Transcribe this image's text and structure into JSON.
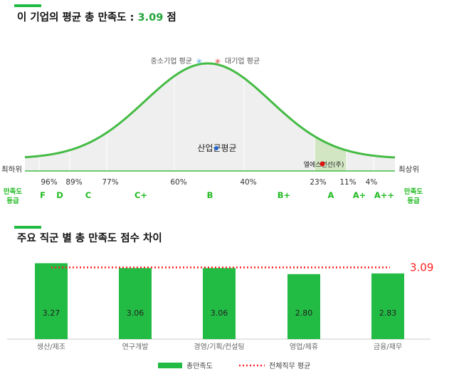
{
  "section1": {
    "title_prefix": "이 기업의 평균 총 만족도 :",
    "score": "3.09",
    "title_suffix": "점"
  },
  "bell": {
    "legend": {
      "sme": "중소기업 평균",
      "large": "대기업 평균"
    },
    "industry_label": "산업군평균",
    "company_label": "엘에스전선(주)",
    "left_end": "최하위",
    "right_end": "최상위",
    "percentiles": [
      "96%",
      "89%",
      "77%",
      "60%",
      "40%",
      "23%",
      "11%",
      "4%"
    ],
    "grade_label_line1": "만족도",
    "grade_label_line2": "등급",
    "grades": [
      "F",
      "D",
      "C",
      "C+",
      "B",
      "B+",
      "A",
      "A+",
      "A++"
    ],
    "colors": {
      "curve": "#44bb44",
      "fill": "#efefef",
      "highlight": "#d2e6c4",
      "sme_mark": "#4aa8d8",
      "large_mark": "#dd3333"
    }
  },
  "section2": {
    "title": "주요 직군 별 총 만족도 점수 차이"
  },
  "chart_data": {
    "type": "bar",
    "categories": [
      "생산/제조",
      "연구개발",
      "경영/기획/컨설팅",
      "영업/제휴",
      "금융/재무"
    ],
    "series": [
      {
        "name": "총만족도",
        "values": [
          3.27,
          3.06,
          3.06,
          2.8,
          2.83
        ]
      }
    ],
    "reference_line": {
      "name": "전체직무 평균",
      "value": 3.09
    },
    "value_labels": [
      "3.27",
      "3.06",
      "3.06",
      "2.80",
      "2.83"
    ],
    "reference_label": "3.09",
    "colors": {
      "bar": "#22bb44",
      "reference": "#ff2222"
    },
    "ylim": [
      0,
      3.5
    ],
    "legend_position": "bottom"
  }
}
